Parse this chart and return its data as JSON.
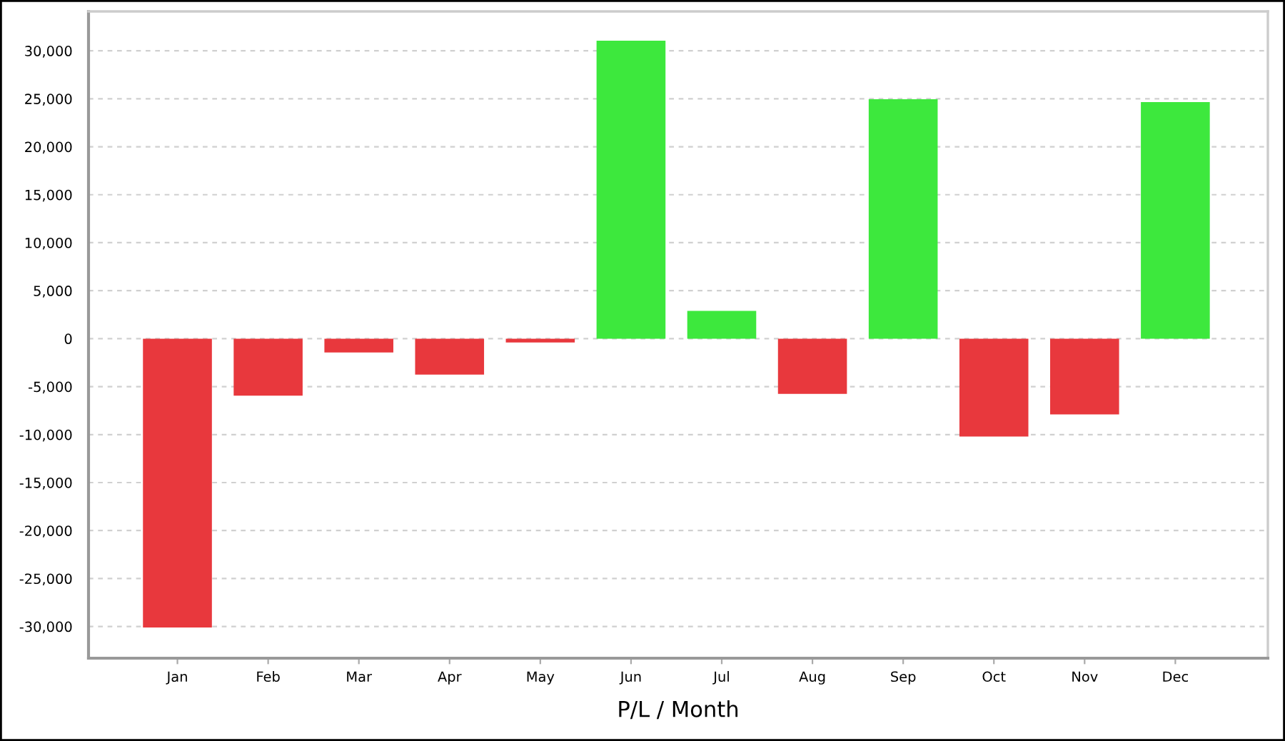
{
  "chart_data": {
    "type": "bar",
    "xlabel": "P/L / Month",
    "categories": [
      "Jan",
      "Feb",
      "Mar",
      "Apr",
      "May",
      "Jun",
      "Jul",
      "Aug",
      "Sep",
      "Oct",
      "Nov",
      "Dec"
    ],
    "values": [
      -30100,
      -5950,
      -1450,
      -3750,
      -400,
      31050,
      2900,
      -5750,
      24950,
      -10200,
      -7900,
      24650
    ],
    "colors": [
      "#e8383d",
      "#e8383d",
      "#e8383d",
      "#e8383d",
      "#e8383d",
      "#3de83d",
      "#3de83d",
      "#e8383d",
      "#3de83d",
      "#e8383d",
      "#e8383d",
      "#3de83d"
    ],
    "ylim": [
      -33300,
      34100
    ],
    "yticks": [
      {
        "value": -30000,
        "label": "-30,000"
      },
      {
        "value": -25000,
        "label": "-25,000"
      },
      {
        "value": -20000,
        "label": "-20,000"
      },
      {
        "value": -15000,
        "label": "-15,000"
      },
      {
        "value": -10000,
        "label": "-10,000"
      },
      {
        "value": -5000,
        "label": "-5,000"
      },
      0,
      {
        "value": 5000,
        "label": "5,000"
      },
      {
        "value": 10000,
        "label": "10,000"
      },
      {
        "value": 15000,
        "label": "15,000"
      },
      {
        "value": 20000,
        "label": "20,000"
      },
      {
        "value": 25000,
        "label": "25,000"
      },
      {
        "value": 30000,
        "label": "30,000"
      }
    ],
    "grid": "y"
  }
}
